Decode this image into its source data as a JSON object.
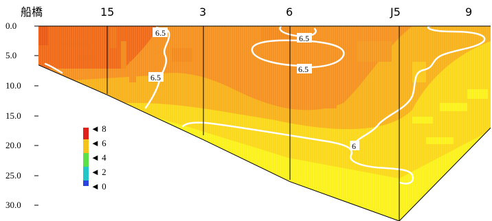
{
  "chart_data": {
    "type": "heatmap",
    "title": "",
    "xlabel": "",
    "ylabel": "",
    "y_reversed": true,
    "ylim": [
      0.0,
      32.0
    ],
    "y_ticks": [
      "0.0",
      "5.0",
      "10.0",
      "15.0",
      "20.0",
      "25.0",
      "30.0"
    ],
    "stations": [
      {
        "label": "船橋",
        "bottom_depth": 6.5
      },
      {
        "label": "15",
        "bottom_depth": 11.5
      },
      {
        "label": "3",
        "bottom_depth": 19.0
      },
      {
        "label": "6",
        "bottom_depth": 26.0
      },
      {
        "label": "J5",
        "bottom_depth": 33.0
      },
      {
        "label": "9",
        "bottom_depth": 17.0
      }
    ],
    "colorbar": {
      "ticks": [
        "8",
        "6",
        "4",
        "2",
        "0"
      ],
      "min": 0,
      "max": 8
    },
    "contour_labels": [
      "6.5",
      "6.5",
      "6.5",
      "6.5",
      "6.5",
      "6"
    ]
  },
  "colors": {
    "deep_orange": "#f06a18",
    "orange": "#f59220",
    "light_orange": "#f8b21c",
    "yellow": "#fbd81a",
    "bright_yellow": "#fbf21c",
    "contour": "#ffffff",
    "grid": "#000000"
  }
}
